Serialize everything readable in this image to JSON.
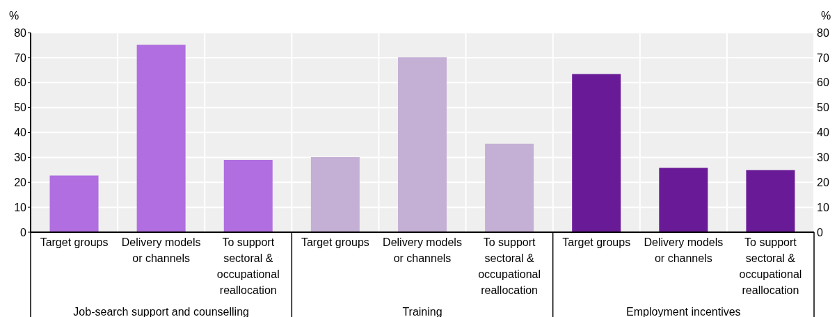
{
  "chart_data": {
    "type": "bar",
    "ylabel": "%",
    "y2label": "%",
    "categories": [
      "Target groups",
      "Delivery models or channels",
      "To support sectoral & occupational reallocation",
      "Target groups",
      "Delivery models or channels",
      "To support sectoral & occupational reallocation",
      "Target groups",
      "Delivery models or channels",
      "To support sectoral & occupational reallocation"
    ],
    "values": [
      22.7,
      75.1,
      29.0,
      30.1,
      70.2,
      35.5,
      63.4,
      25.8,
      24.9
    ],
    "colors": [
      "#b06ee0",
      "#b06ee0",
      "#b06ee0",
      "#c5b0d5",
      "#c5b0d5",
      "#c5b0d5",
      "#691b97",
      "#691b97",
      "#691b97"
    ],
    "annotations": [
      "Job-search support and counselling",
      "Training",
      "Employment incentives"
    ],
    "ylim": [
      0,
      80
    ],
    "yticks": [
      0,
      10,
      20,
      30,
      40,
      50,
      60,
      70,
      80
    ],
    "y2lim": [
      0,
      80
    ],
    "y2ticks": [
      0,
      10,
      20,
      30,
      40,
      50,
      60,
      70,
      80
    ],
    "grid": true
  }
}
